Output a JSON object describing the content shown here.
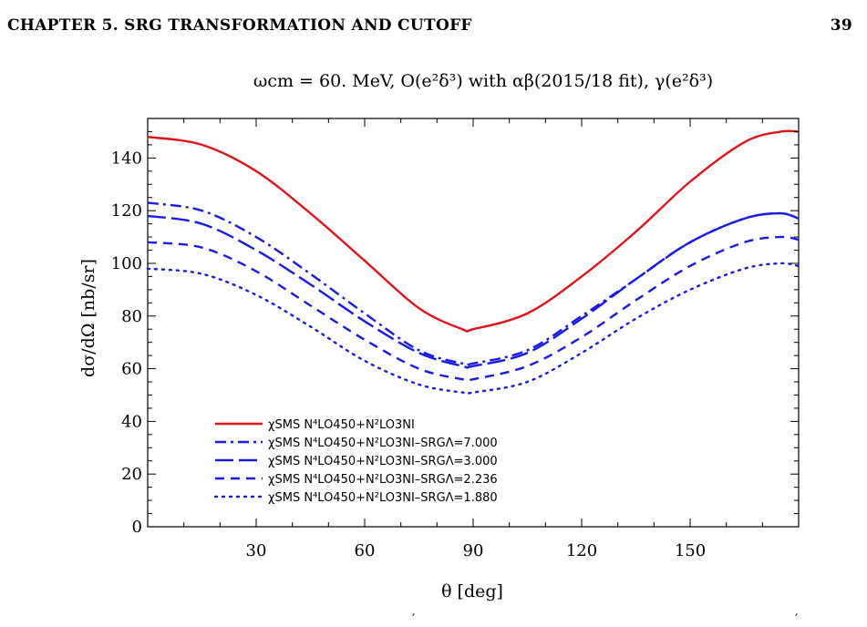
{
  "page": {
    "header_left": "CHAPTER 5.  SRG TRANSFORMATION AND CUTOFF",
    "header_right": "39",
    "footer_fragment_left": "′",
    "footer_fragment_right": "′"
  },
  "chart_data": {
    "type": "line",
    "title": "ωcm = 60. MeV, O(e²δ³) with αβ(2015/18 fit), γ(e²δ³)",
    "xlabel": "θ [deg]",
    "ylabel": "dσ/dΩ [nb/sr]",
    "xlim": [
      0,
      180
    ],
    "ylim": [
      0,
      155
    ],
    "xticks": [
      30,
      60,
      90,
      120,
      150
    ],
    "yticks": [
      0,
      20,
      40,
      60,
      80,
      100,
      120,
      140
    ],
    "grid": false,
    "legend_position": "bottom-left",
    "x": [
      0,
      15,
      30,
      45,
      60,
      75,
      87,
      90,
      105,
      120,
      135,
      150,
      165,
      175,
      180
    ],
    "series": [
      {
        "name": "χSMS N⁴LO450+N²LO3NI",
        "color": "#e0141b",
        "dash": "solid",
        "values": [
          148,
          145,
          135,
          119,
          101,
          83,
          75,
          75,
          81,
          95,
          112,
          131,
          146,
          150,
          150
        ]
      },
      {
        "name": "χSMS N⁴LO450+N²LO3NI–SRGΛ=7.000",
        "color": "#1a1ae6",
        "dash": "dashdot",
        "values": [
          123,
          120,
          110,
          96,
          81,
          67,
          62,
          62,
          67,
          80,
          94,
          108,
          117,
          119,
          117
        ]
      },
      {
        "name": "χSMS N⁴LO450+N²LO3NI–SRGΛ=3.000",
        "color": "#1a1ae6",
        "dash": "longdash",
        "values": [
          118,
          115,
          105,
          92,
          78,
          66,
          61,
          61,
          66,
          79,
          94,
          108,
          117,
          119,
          117
        ]
      },
      {
        "name": "χSMS N⁴LO450+N²LO3NI–SRGΛ=2.236",
        "color": "#1a1ae6",
        "dash": "dashed",
        "values": [
          108,
          106,
          97,
          84,
          71,
          60,
          56,
          56,
          61,
          72,
          86,
          99,
          108,
          110,
          109
        ]
      },
      {
        "name": "χSMS N⁴LO450+N²LO3NI–SRGΛ=1.880",
        "color": "#1a1ae6",
        "dash": "dotted",
        "values": [
          98,
          96,
          88,
          76,
          63,
          54,
          51,
          51,
          55,
          66,
          79,
          90,
          98,
          100,
          99
        ]
      }
    ]
  }
}
